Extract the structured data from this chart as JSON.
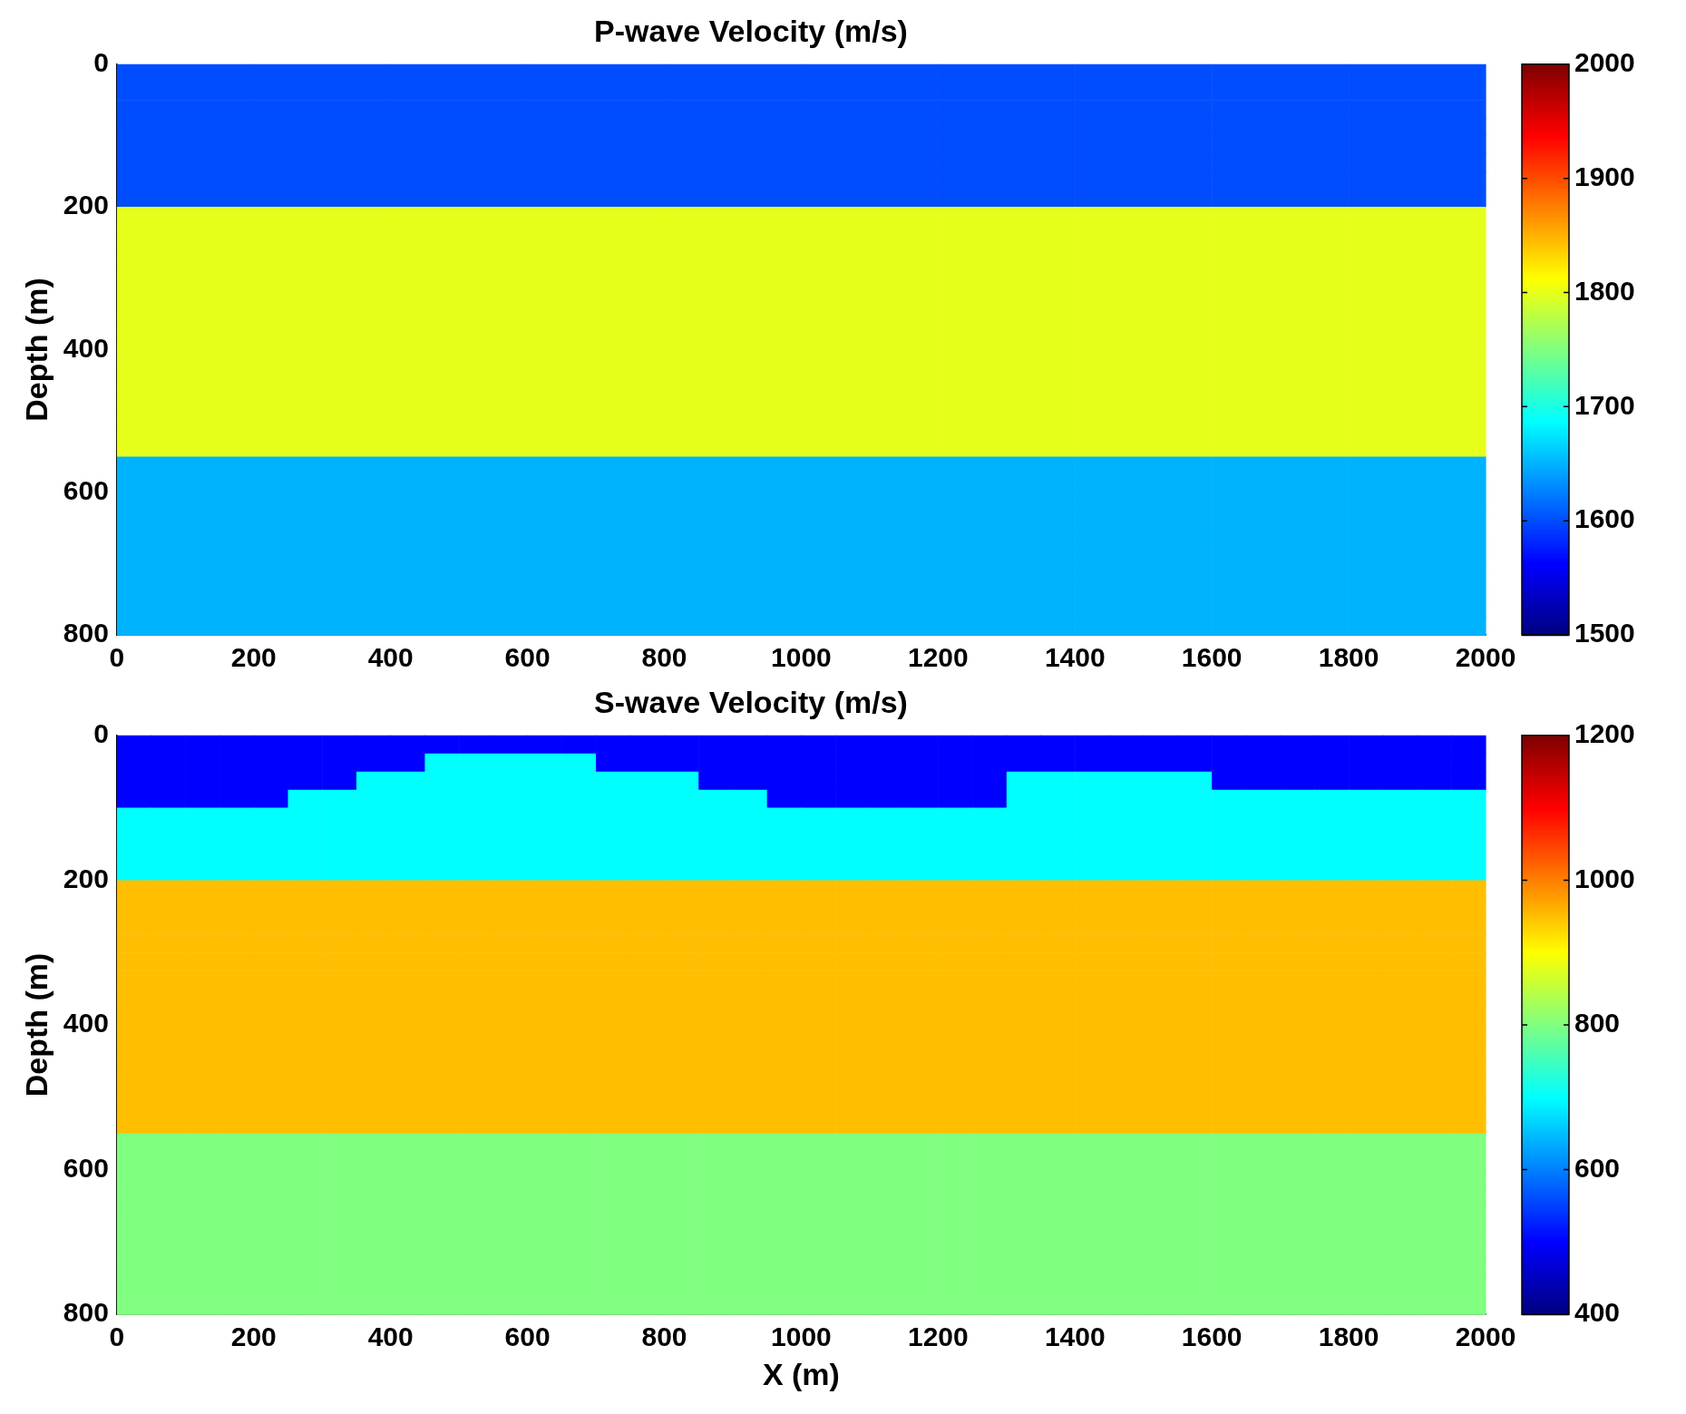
{
  "chart_data": [
    {
      "type": "heatmap",
      "title": "P-wave Velocity (m/s)",
      "ylabel": "Depth (m)",
      "xlim": [
        0,
        2000
      ],
      "ylim": [
        800,
        0
      ],
      "xticks": [
        0,
        200,
        400,
        600,
        800,
        1000,
        1200,
        1400,
        1600,
        1800,
        2000
      ],
      "yticks": [
        0,
        200,
        400,
        600,
        800
      ],
      "clim": [
        1500,
        2000
      ],
      "cticks": [
        1500,
        1600,
        1700,
        1800,
        1900,
        2000
      ],
      "cells": [
        [
          1600,
          1600,
          1600,
          1600,
          1600,
          1600,
          1600,
          1600,
          1600,
          1600
        ],
        [
          1600,
          1600,
          1600,
          1600,
          1600,
          1600,
          1600,
          1600,
          1600,
          1600
        ],
        [
          1600,
          1600,
          1600,
          1600,
          1600,
          1600,
          1600,
          1600,
          1600,
          1600
        ],
        [
          1600,
          1600,
          1600,
          1600,
          1600,
          1600,
          1600,
          1600,
          1600,
          1600
        ],
        [
          1600,
          1600,
          1600,
          1600,
          1600,
          1600,
          1600,
          1600,
          1600,
          1600
        ],
        [
          1600,
          1600,
          1600,
          1600,
          1600,
          1600,
          1600,
          1600,
          1600,
          1600
        ],
        [
          1600,
          1600,
          1600,
          1600,
          1600,
          1600,
          1600,
          1600,
          1600,
          1600
        ],
        [
          1600,
          1600,
          1600,
          1600,
          1600,
          1600,
          1600,
          1600,
          1600,
          1600
        ],
        [
          1800,
          1800,
          1800,
          1800,
          1800,
          1800,
          1800,
          1800,
          1800,
          1800
        ],
        [
          1800,
          1800,
          1800,
          1800,
          1800,
          1800,
          1800,
          1800,
          1800,
          1800
        ],
        [
          1800,
          1800,
          1800,
          1800,
          1800,
          1800,
          1800,
          1800,
          1800,
          1800
        ],
        [
          1800,
          1800,
          1800,
          1800,
          1800,
          1800,
          1800,
          1800,
          1800,
          1800
        ],
        [
          1800,
          1800,
          1800,
          1800,
          1800,
          1800,
          1800,
          1800,
          1800,
          1800
        ],
        [
          1800,
          1800,
          1800,
          1800,
          1800,
          1800,
          1800,
          1800,
          1800,
          1800
        ],
        [
          1800,
          1800,
          1800,
          1800,
          1800,
          1800,
          1800,
          1800,
          1800,
          1800
        ],
        [
          1800,
          1800,
          1800,
          1800,
          1800,
          1800,
          1800,
          1800,
          1800,
          1800
        ],
        [
          1800,
          1800,
          1800,
          1800,
          1800,
          1800,
          1800,
          1800,
          1800,
          1800
        ],
        [
          1800,
          1800,
          1800,
          1800,
          1800,
          1800,
          1800,
          1800,
          1800,
          1800
        ],
        [
          1800,
          1800,
          1800,
          1800,
          1800,
          1800,
          1800,
          1800,
          1800,
          1800
        ],
        [
          1800,
          1800,
          1800,
          1800,
          1800,
          1800,
          1800,
          1800,
          1800,
          1800
        ],
        [
          1800,
          1800,
          1800,
          1800,
          1800,
          1800,
          1800,
          1800,
          1800,
          1800
        ],
        [
          1800,
          1800,
          1800,
          1800,
          1800,
          1800,
          1800,
          1800,
          1800,
          1800
        ],
        [
          1650,
          1650,
          1650,
          1650,
          1650,
          1650,
          1650,
          1650,
          1650,
          1650
        ],
        [
          1650,
          1650,
          1650,
          1650,
          1650,
          1650,
          1650,
          1650,
          1650,
          1650
        ],
        [
          1650,
          1650,
          1650,
          1650,
          1650,
          1650,
          1650,
          1650,
          1650,
          1650
        ],
        [
          1650,
          1650,
          1650,
          1650,
          1650,
          1650,
          1650,
          1650,
          1650,
          1650
        ],
        [
          1650,
          1650,
          1650,
          1650,
          1650,
          1650,
          1650,
          1650,
          1650,
          1650
        ],
        [
          1650,
          1650,
          1650,
          1650,
          1650,
          1650,
          1650,
          1650,
          1650,
          1650
        ],
        [
          1650,
          1650,
          1650,
          1650,
          1650,
          1650,
          1650,
          1650,
          1650,
          1650
        ],
        [
          1650,
          1650,
          1650,
          1650,
          1650,
          1650,
          1650,
          1650,
          1650,
          1650
        ],
        [
          1650,
          1650,
          1650,
          1650,
          1650,
          1650,
          1650,
          1650,
          1650,
          1650
        ],
        [
          1650,
          1650,
          1650,
          1650,
          1650,
          1650,
          1650,
          1650,
          1650,
          1650
        ]
      ]
    },
    {
      "type": "heatmap",
      "title": "S-wave Velocity (m/s)",
      "xlabel": "X (m)",
      "ylabel": "Depth (m)",
      "xlim": [
        0,
        2000
      ],
      "ylim": [
        800,
        0
      ],
      "xticks": [
        0,
        200,
        400,
        600,
        800,
        1000,
        1200,
        1400,
        1600,
        1800,
        2000
      ],
      "yticks": [
        0,
        200,
        400,
        600,
        800
      ],
      "clim": [
        400,
        1200
      ],
      "cticks": [
        400,
        600,
        800,
        1000,
        1200
      ],
      "cells": [
        [
          500,
          500,
          500,
          500,
          500,
          500,
          500,
          500,
          500,
          500,
          500,
          500,
          500,
          500,
          500,
          500,
          500,
          500,
          500,
          500,
          500,
          500,
          500,
          500,
          500,
          500,
          500,
          500,
          500,
          500,
          500,
          500,
          500,
          500,
          500,
          500,
          500,
          500,
          500,
          500
        ],
        [
          500,
          500,
          500,
          500,
          500,
          500,
          500,
          500,
          500,
          700,
          700,
          700,
          700,
          700,
          500,
          500,
          500,
          500,
          500,
          500,
          500,
          500,
          500,
          500,
          500,
          500,
          500,
          500,
          500,
          500,
          500,
          500,
          500,
          500,
          500,
          500,
          500,
          500,
          500,
          500
        ],
        [
          500,
          500,
          500,
          500,
          500,
          500,
          500,
          700,
          700,
          700,
          700,
          700,
          700,
          700,
          700,
          700,
          700,
          500,
          500,
          500,
          500,
          500,
          500,
          500,
          500,
          500,
          700,
          700,
          700,
          700,
          700,
          700,
          500,
          500,
          500,
          500,
          500,
          500,
          500,
          500
        ],
        [
          500,
          500,
          500,
          500,
          500,
          700,
          700,
          700,
          700,
          700,
          700,
          700,
          700,
          700,
          700,
          700,
          700,
          700,
          700,
          500,
          500,
          500,
          500,
          500,
          500,
          500,
          700,
          700,
          700,
          700,
          700,
          700,
          700,
          700,
          700,
          700,
          700,
          700,
          700,
          700
        ],
        [
          700,
          700,
          700,
          700,
          700,
          700,
          700,
          700,
          700,
          700,
          700,
          700,
          700,
          700,
          700,
          700,
          700,
          700,
          700,
          700,
          700,
          700,
          700,
          700,
          700,
          700,
          700,
          700,
          700,
          700,
          700,
          700,
          700,
          700,
          700,
          700,
          700,
          700,
          700,
          700
        ],
        [
          700,
          700,
          700,
          700,
          700,
          700,
          700,
          700,
          700,
          700,
          700,
          700,
          700,
          700,
          700,
          700,
          700,
          700,
          700,
          700,
          700,
          700,
          700,
          700,
          700,
          700,
          700,
          700,
          700,
          700,
          700,
          700,
          700,
          700,
          700,
          700,
          700,
          700,
          700,
          700
        ],
        [
          700,
          700,
          700,
          700,
          700,
          700,
          700,
          700,
          700,
          700,
          700,
          700,
          700,
          700,
          700,
          700,
          700,
          700,
          700,
          700,
          700,
          700,
          700,
          700,
          700,
          700,
          700,
          700,
          700,
          700,
          700,
          700,
          700,
          700,
          700,
          700,
          700,
          700,
          700,
          700
        ],
        [
          700,
          700,
          700,
          700,
          700,
          700,
          700,
          700,
          700,
          700,
          700,
          700,
          700,
          700,
          700,
          700,
          700,
          700,
          700,
          700,
          700,
          700,
          700,
          700,
          700,
          700,
          700,
          700,
          700,
          700,
          700,
          700,
          700,
          700,
          700,
          700,
          700,
          700,
          700,
          700
        ],
        [
          950,
          950,
          950,
          950,
          950,
          950,
          950,
          950,
          950,
          950,
          950,
          950,
          950,
          950,
          950,
          950,
          950,
          950,
          950,
          950,
          950,
          950,
          950,
          950,
          950,
          950,
          950,
          950,
          950,
          950,
          950,
          950,
          950,
          950,
          950,
          950,
          950,
          950,
          950,
          950
        ],
        [
          950,
          950,
          950,
          950,
          950,
          950,
          950,
          950,
          950,
          950,
          950,
          950,
          950,
          950,
          950,
          950,
          950,
          950,
          950,
          950,
          950,
          950,
          950,
          950,
          950,
          950,
          950,
          950,
          950,
          950,
          950,
          950,
          950,
          950,
          950,
          950,
          950,
          950,
          950,
          950
        ],
        [
          950,
          950,
          950,
          950,
          950,
          950,
          950,
          950,
          950,
          950,
          950,
          950,
          950,
          950,
          950,
          950,
          950,
          950,
          950,
          950,
          950,
          950,
          950,
          950,
          950,
          950,
          950,
          950,
          950,
          950,
          950,
          950,
          950,
          950,
          950,
          950,
          950,
          950,
          950,
          950
        ],
        [
          950,
          950,
          950,
          950,
          950,
          950,
          950,
          950,
          950,
          950,
          950,
          950,
          950,
          950,
          950,
          950,
          950,
          950,
          950,
          950,
          950,
          950,
          950,
          950,
          950,
          950,
          950,
          950,
          950,
          950,
          950,
          950,
          950,
          950,
          950,
          950,
          950,
          950,
          950,
          950
        ],
        [
          950,
          950,
          950,
          950,
          950,
          950,
          950,
          950,
          950,
          950,
          950,
          950,
          950,
          950,
          950,
          950,
          950,
          950,
          950,
          950,
          950,
          950,
          950,
          950,
          950,
          950,
          950,
          950,
          950,
          950,
          950,
          950,
          950,
          950,
          950,
          950,
          950,
          950,
          950,
          950
        ],
        [
          950,
          950,
          950,
          950,
          950,
          950,
          950,
          950,
          950,
          950,
          950,
          950,
          950,
          950,
          950,
          950,
          950,
          950,
          950,
          950,
          950,
          950,
          950,
          950,
          950,
          950,
          950,
          950,
          950,
          950,
          950,
          950,
          950,
          950,
          950,
          950,
          950,
          950,
          950,
          950
        ],
        [
          950,
          950,
          950,
          950,
          950,
          950,
          950,
          950,
          950,
          950,
          950,
          950,
          950,
          950,
          950,
          950,
          950,
          950,
          950,
          950,
          950,
          950,
          950,
          950,
          950,
          950,
          950,
          950,
          950,
          950,
          950,
          950,
          950,
          950,
          950,
          950,
          950,
          950,
          950,
          950
        ],
        [
          950,
          950,
          950,
          950,
          950,
          950,
          950,
          950,
          950,
          950,
          950,
          950,
          950,
          950,
          950,
          950,
          950,
          950,
          950,
          950,
          950,
          950,
          950,
          950,
          950,
          950,
          950,
          950,
          950,
          950,
          950,
          950,
          950,
          950,
          950,
          950,
          950,
          950,
          950,
          950
        ],
        [
          950,
          950,
          950,
          950,
          950,
          950,
          950,
          950,
          950,
          950,
          950,
          950,
          950,
          950,
          950,
          950,
          950,
          950,
          950,
          950,
          950,
          950,
          950,
          950,
          950,
          950,
          950,
          950,
          950,
          950,
          950,
          950,
          950,
          950,
          950,
          950,
          950,
          950,
          950,
          950
        ],
        [
          950,
          950,
          950,
          950,
          950,
          950,
          950,
          950,
          950,
          950,
          950,
          950,
          950,
          950,
          950,
          950,
          950,
          950,
          950,
          950,
          950,
          950,
          950,
          950,
          950,
          950,
          950,
          950,
          950,
          950,
          950,
          950,
          950,
          950,
          950,
          950,
          950,
          950,
          950,
          950
        ],
        [
          950,
          950,
          950,
          950,
          950,
          950,
          950,
          950,
          950,
          950,
          950,
          950,
          950,
          950,
          950,
          950,
          950,
          950,
          950,
          950,
          950,
          950,
          950,
          950,
          950,
          950,
          950,
          950,
          950,
          950,
          950,
          950,
          950,
          950,
          950,
          950,
          950,
          950,
          950,
          950
        ],
        [
          950,
          950,
          950,
          950,
          950,
          950,
          950,
          950,
          950,
          950,
          950,
          950,
          950,
          950,
          950,
          950,
          950,
          950,
          950,
          950,
          950,
          950,
          950,
          950,
          950,
          950,
          950,
          950,
          950,
          950,
          950,
          950,
          950,
          950,
          950,
          950,
          950,
          950,
          950,
          950
        ],
        [
          950,
          950,
          950,
          950,
          950,
          950,
          950,
          950,
          950,
          950,
          950,
          950,
          950,
          950,
          950,
          950,
          950,
          950,
          950,
          950,
          950,
          950,
          950,
          950,
          950,
          950,
          950,
          950,
          950,
          950,
          950,
          950,
          950,
          950,
          950,
          950,
          950,
          950,
          950,
          950
        ],
        [
          950,
          950,
          950,
          950,
          950,
          950,
          950,
          950,
          950,
          950,
          950,
          950,
          950,
          950,
          950,
          950,
          950,
          950,
          950,
          950,
          950,
          950,
          950,
          950,
          950,
          950,
          950,
          950,
          950,
          950,
          950,
          950,
          950,
          950,
          950,
          950,
          950,
          950,
          950,
          950
        ],
        [
          800,
          800,
          800,
          800,
          800,
          800,
          800,
          800,
          800,
          800,
          800,
          800,
          800,
          800,
          800,
          800,
          800,
          800,
          800,
          800,
          800,
          800,
          800,
          800,
          800,
          800,
          800,
          800,
          800,
          800,
          800,
          800,
          800,
          800,
          800,
          800,
          800,
          800,
          800,
          800
        ],
        [
          800,
          800,
          800,
          800,
          800,
          800,
          800,
          800,
          800,
          800,
          800,
          800,
          800,
          800,
          800,
          800,
          800,
          800,
          800,
          800,
          800,
          800,
          800,
          800,
          800,
          800,
          800,
          800,
          800,
          800,
          800,
          800,
          800,
          800,
          800,
          800,
          800,
          800,
          800,
          800
        ],
        [
          800,
          800,
          800,
          800,
          800,
          800,
          800,
          800,
          800,
          800,
          800,
          800,
          800,
          800,
          800,
          800,
          800,
          800,
          800,
          800,
          800,
          800,
          800,
          800,
          800,
          800,
          800,
          800,
          800,
          800,
          800,
          800,
          800,
          800,
          800,
          800,
          800,
          800,
          800,
          800
        ],
        [
          800,
          800,
          800,
          800,
          800,
          800,
          800,
          800,
          800,
          800,
          800,
          800,
          800,
          800,
          800,
          800,
          800,
          800,
          800,
          800,
          800,
          800,
          800,
          800,
          800,
          800,
          800,
          800,
          800,
          800,
          800,
          800,
          800,
          800,
          800,
          800,
          800,
          800,
          800,
          800
        ],
        [
          800,
          800,
          800,
          800,
          800,
          800,
          800,
          800,
          800,
          800,
          800,
          800,
          800,
          800,
          800,
          800,
          800,
          800,
          800,
          800,
          800,
          800,
          800,
          800,
          800,
          800,
          800,
          800,
          800,
          800,
          800,
          800,
          800,
          800,
          800,
          800,
          800,
          800,
          800,
          800
        ],
        [
          800,
          800,
          800,
          800,
          800,
          800,
          800,
          800,
          800,
          800,
          800,
          800,
          800,
          800,
          800,
          800,
          800,
          800,
          800,
          800,
          800,
          800,
          800,
          800,
          800,
          800,
          800,
          800,
          800,
          800,
          800,
          800,
          800,
          800,
          800,
          800,
          800,
          800,
          800,
          800
        ],
        [
          800,
          800,
          800,
          800,
          800,
          800,
          800,
          800,
          800,
          800,
          800,
          800,
          800,
          800,
          800,
          800,
          800,
          800,
          800,
          800,
          800,
          800,
          800,
          800,
          800,
          800,
          800,
          800,
          800,
          800,
          800,
          800,
          800,
          800,
          800,
          800,
          800,
          800,
          800,
          800
        ],
        [
          800,
          800,
          800,
          800,
          800,
          800,
          800,
          800,
          800,
          800,
          800,
          800,
          800,
          800,
          800,
          800,
          800,
          800,
          800,
          800,
          800,
          800,
          800,
          800,
          800,
          800,
          800,
          800,
          800,
          800,
          800,
          800,
          800,
          800,
          800,
          800,
          800,
          800,
          800,
          800
        ],
        [
          800,
          800,
          800,
          800,
          800,
          800,
          800,
          800,
          800,
          800,
          800,
          800,
          800,
          800,
          800,
          800,
          800,
          800,
          800,
          800,
          800,
          800,
          800,
          800,
          800,
          800,
          800,
          800,
          800,
          800,
          800,
          800,
          800,
          800,
          800,
          800,
          800,
          800,
          800,
          800
        ],
        [
          800,
          800,
          800,
          800,
          800,
          800,
          800,
          800,
          800,
          800,
          800,
          800,
          800,
          800,
          800,
          800,
          800,
          800,
          800,
          800,
          800,
          800,
          800,
          800,
          800,
          800,
          800,
          800,
          800,
          800,
          800,
          800,
          800,
          800,
          800,
          800,
          800,
          800,
          800,
          800
        ]
      ]
    }
  ]
}
